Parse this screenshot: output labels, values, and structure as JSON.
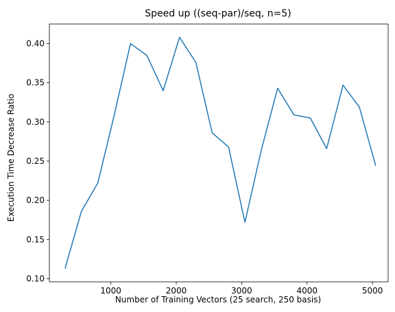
{
  "chart_data": {
    "type": "line",
    "title": "Speed up ((seq-par)/seq, n=5)",
    "xlabel": "Number of Training Vectors (25 search, 250 basis)",
    "ylabel": "Execution Time Decrease Ratio",
    "xlim": [
      60,
      5240
    ],
    "ylim": [
      0.096,
      0.425
    ],
    "xticks": [
      1000,
      2000,
      3000,
      4000,
      5000
    ],
    "yticks": [
      0.1,
      0.15,
      0.2,
      0.25,
      0.3,
      0.35,
      0.4
    ],
    "xtick_labels": [
      "1000",
      "2000",
      "3000",
      "4000",
      "5000"
    ],
    "ytick_labels": [
      "0.10",
      "0.15",
      "0.20",
      "0.25",
      "0.30",
      "0.35",
      "0.40"
    ],
    "grid": false,
    "series": [
      {
        "color": "#1f77b4",
        "x": [
          300,
          550,
          800,
          1050,
          1300,
          1550,
          1800,
          2050,
          2300,
          2550,
          2800,
          3050,
          3300,
          3550,
          3800,
          4050,
          4300,
          4550,
          4800,
          5050
        ],
        "y": [
          0.113,
          0.186,
          0.222,
          0.308,
          0.4,
          0.385,
          0.34,
          0.408,
          0.376,
          0.286,
          0.268,
          0.172,
          0.264,
          0.343,
          0.309,
          0.305,
          0.266,
          0.347,
          0.319,
          0.244
        ]
      }
    ]
  }
}
